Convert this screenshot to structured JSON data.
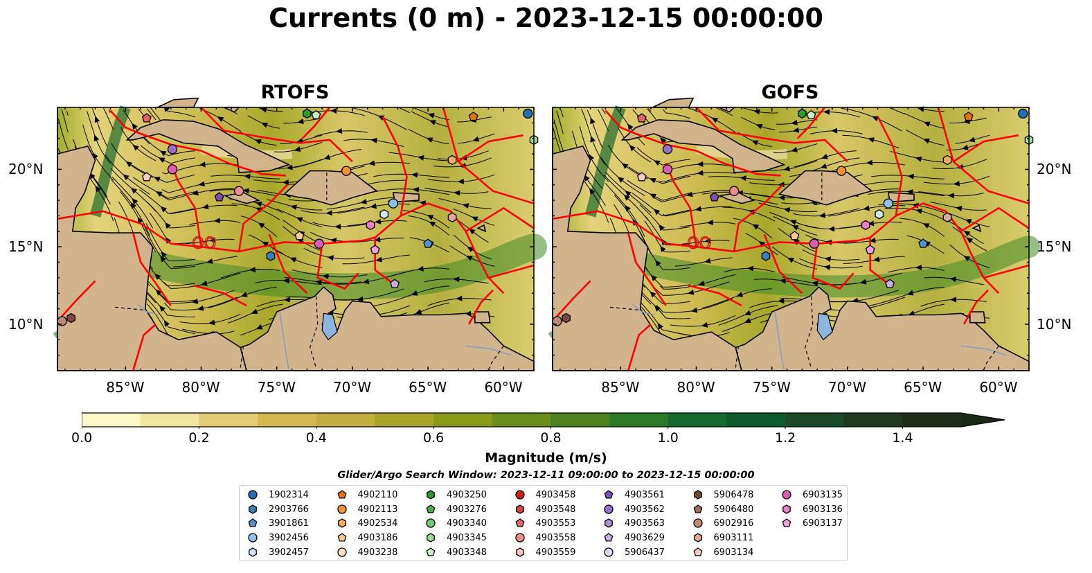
{
  "suptitle": "Currents (0 m) - 2023-12-15 00:00:00",
  "panels": [
    {
      "title": "RTOFS"
    },
    {
      "title": "GOFS"
    }
  ],
  "map": {
    "lon_range": [
      -89.5,
      -58
    ],
    "lat_range": [
      7,
      24
    ],
    "lon_ticks": [
      "85°W",
      "80°W",
      "75°W",
      "70°W",
      "65°W",
      "60°W"
    ],
    "lat_ticks": [
      "20°N",
      "15°N",
      "10°N"
    ],
    "land_color": "#d2b48c",
    "boundary_color": "#ff0000",
    "streamline_color": "#000000"
  },
  "colorbar": {
    "title": "Magnitude (m/s)",
    "ticks": [
      "0.0",
      "0.2",
      "0.4",
      "0.6",
      "0.8",
      "1.0",
      "1.2",
      "1.4"
    ],
    "range": [
      0.0,
      1.5
    ],
    "extend": "max",
    "colors": [
      "#fdf8c8",
      "#f2e5a0",
      "#e1cc74",
      "#d3b852",
      "#c2ae3e",
      "#a8a22a",
      "#8a9a1a",
      "#6a8e1a",
      "#4e8220",
      "#2e7a2a",
      "#166a30",
      "#0f5a2c",
      "#1c4a28",
      "#1f3a20",
      "#1e2e18"
    ]
  },
  "search_window": "Glider/Argo Search Window: 2023-12-11 09:00:00 to 2023-12-15 00:00:00",
  "legend": [
    {
      "id": "1902314",
      "marker": "circle",
      "color": "#1f6fb4"
    },
    {
      "id": "2903766",
      "marker": "hexagon",
      "color": "#3a7fc0"
    },
    {
      "id": "3901861",
      "marker": "pentagon",
      "color": "#4f95d6"
    },
    {
      "id": "3902456",
      "marker": "circle",
      "color": "#8fc2ea"
    },
    {
      "id": "3902457",
      "marker": "hexagon",
      "color": "#cfe6f6"
    },
    {
      "id": "4902110",
      "marker": "pentagon",
      "color": "#e8700e"
    },
    {
      "id": "4902113",
      "marker": "circle",
      "color": "#f3922e"
    },
    {
      "id": "4902534",
      "marker": "hexagon",
      "color": "#f6ad62"
    },
    {
      "id": "4903186",
      "marker": "pentagon",
      "color": "#f9c992"
    },
    {
      "id": "4903238",
      "marker": "circle",
      "color": "#fde2c6"
    },
    {
      "id": "4903250",
      "marker": "hexagon",
      "color": "#2f9a2f"
    },
    {
      "id": "4903276",
      "marker": "pentagon",
      "color": "#4cb14c"
    },
    {
      "id": "4903340",
      "marker": "circle",
      "color": "#73c873"
    },
    {
      "id": "4903345",
      "marker": "hexagon",
      "color": "#9edd9a"
    },
    {
      "id": "4903348",
      "marker": "pentagon",
      "color": "#ccf0c6"
    },
    {
      "id": "4903458",
      "marker": "circle",
      "color": "#cc2020"
    },
    {
      "id": "4903548",
      "marker": "hexagon",
      "color": "#d94444"
    },
    {
      "id": "4903553",
      "marker": "pentagon",
      "color": "#e56464"
    },
    {
      "id": "4903558",
      "marker": "circle",
      "color": "#ef8e8e"
    },
    {
      "id": "4903559",
      "marker": "hexagon",
      "color": "#f8c4c4"
    },
    {
      "id": "4903561",
      "marker": "pentagon",
      "color": "#7b4fb4"
    },
    {
      "id": "4903562",
      "marker": "circle",
      "color": "#9570c6"
    },
    {
      "id": "4903563",
      "marker": "hexagon",
      "color": "#ac8fd4"
    },
    {
      "id": "4903629",
      "marker": "pentagon",
      "color": "#c8b0e4"
    },
    {
      "id": "5906437",
      "marker": "circle",
      "color": "#e6d6f4"
    },
    {
      "id": "5906478",
      "marker": "hexagon",
      "color": "#7a4a3a"
    },
    {
      "id": "5906480",
      "marker": "pentagon",
      "color": "#9a6a5a"
    },
    {
      "id": "6902916",
      "marker": "circle",
      "color": "#c08a78"
    },
    {
      "id": "6903111",
      "marker": "hexagon",
      "color": "#dcab9a"
    },
    {
      "id": "6903134",
      "marker": "pentagon",
      "color": "#f4cfc0"
    },
    {
      "id": "6903135",
      "marker": "circle",
      "color": "#d95fb6"
    },
    {
      "id": "6903136",
      "marker": "hexagon",
      "color": "#e87fca"
    },
    {
      "id": "6903137",
      "marker": "pentagon",
      "color": "#f29edc"
    }
  ]
}
